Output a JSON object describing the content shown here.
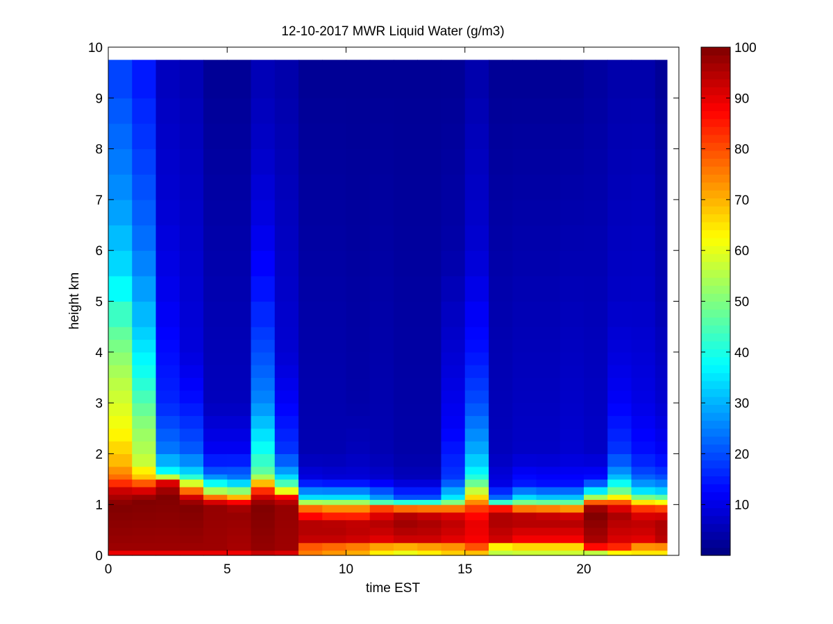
{
  "chart_data": {
    "type": "heatmap",
    "title": "12-10-2017 MWR Liquid Water (g/m3)",
    "xlabel": "time EST",
    "ylabel": "height km",
    "xlim": [
      0,
      24
    ],
    "ylim": [
      0,
      10
    ],
    "xticks": [
      0,
      5,
      10,
      15,
      20
    ],
    "yticks": [
      0,
      1,
      2,
      3,
      4,
      5,
      6,
      7,
      8,
      9,
      10
    ],
    "colormap": "jet",
    "clim": [
      0,
      100
    ],
    "colorbar_ticks": [
      10,
      20,
      30,
      40,
      50,
      60,
      70,
      80,
      90,
      100
    ],
    "time_columns": [
      0,
      1,
      2,
      3,
      4,
      5,
      6,
      7,
      8,
      9,
      10,
      11,
      12,
      13,
      14,
      15,
      16,
      17,
      18,
      19,
      20,
      21,
      22,
      23
    ],
    "height_bins_top_km": [
      0.1,
      0.25,
      0.4,
      0.55,
      0.7,
      0.85,
      1.0,
      1.1,
      1.2,
      1.35,
      1.5,
      1.6,
      1.75,
      2.0,
      2.25,
      2.5,
      2.75,
      3.0,
      3.25,
      3.5,
      3.75,
      4.0,
      4.25,
      4.5,
      5.0,
      5.5,
      6.0,
      6.5,
      7.0,
      7.5,
      8.0,
      8.5,
      9.0,
      9.75
    ],
    "profiles": [
      {
        "time": 0,
        "anchors": [
          [
            0,
            82
          ],
          [
            0.1,
            97
          ],
          [
            1.0,
            100
          ],
          [
            1.3,
            92
          ],
          [
            1.5,
            78
          ],
          [
            1.8,
            70
          ],
          [
            2.5,
            62
          ],
          [
            3.5,
            55
          ],
          [
            4.5,
            46
          ],
          [
            5.5,
            35
          ],
          [
            7,
            27
          ],
          [
            8.5,
            22
          ],
          [
            9.75,
            18
          ]
        ]
      },
      {
        "time": 1,
        "anchors": [
          [
            0,
            82
          ],
          [
            0.1,
            97
          ],
          [
            1.1,
            100
          ],
          [
            1.3,
            90
          ],
          [
            1.55,
            68
          ],
          [
            1.9,
            56
          ],
          [
            2.5,
            52
          ],
          [
            3.5,
            40
          ],
          [
            4.5,
            32
          ],
          [
            6,
            24
          ],
          [
            8,
            18
          ],
          [
            9.75,
            14
          ]
        ]
      },
      {
        "time": 2,
        "anchors": [
          [
            0,
            82
          ],
          [
            0.1,
            97
          ],
          [
            1.2,
            100
          ],
          [
            1.45,
            90
          ],
          [
            1.6,
            40
          ],
          [
            2.0,
            25
          ],
          [
            3,
            16
          ],
          [
            5,
            11
          ],
          [
            7,
            8
          ],
          [
            9.75,
            6
          ]
        ]
      },
      {
        "time": 3,
        "anchors": [
          [
            0,
            82
          ],
          [
            0.1,
            97
          ],
          [
            1.0,
            100
          ],
          [
            1.15,
            92
          ],
          [
            1.4,
            62
          ],
          [
            1.6,
            35
          ],
          [
            2.0,
            22
          ],
          [
            3,
            14
          ],
          [
            4,
            9
          ],
          [
            9.75,
            5
          ]
        ]
      },
      {
        "time": 4,
        "anchors": [
          [
            0,
            82
          ],
          [
            0.1,
            97
          ],
          [
            1.0,
            98
          ],
          [
            1.1,
            85
          ],
          [
            1.3,
            50
          ],
          [
            1.6,
            22
          ],
          [
            2,
            12
          ],
          [
            3,
            6
          ],
          [
            9.75,
            2
          ]
        ]
      },
      {
        "time": 5,
        "anchors": [
          [
            0,
            82
          ],
          [
            0.1,
            96
          ],
          [
            0.9,
            98
          ],
          [
            1.05,
            88
          ],
          [
            1.2,
            60
          ],
          [
            1.5,
            25
          ],
          [
            2,
            12
          ],
          [
            3,
            6
          ],
          [
            9.75,
            2
          ]
        ]
      },
      {
        "time": 6,
        "anchors": [
          [
            0,
            90
          ],
          [
            0.15,
            98
          ],
          [
            1.0,
            100
          ],
          [
            1.2,
            90
          ],
          [
            1.4,
            72
          ],
          [
            1.6,
            48
          ],
          [
            2.0,
            40
          ],
          [
            2.5,
            33
          ],
          [
            3,
            26
          ],
          [
            4,
            20
          ],
          [
            5,
            15
          ],
          [
            6.5,
            10
          ],
          [
            8,
            7
          ],
          [
            9.75,
            5
          ]
        ]
      },
      {
        "time": 7,
        "anchors": [
          [
            0,
            85
          ],
          [
            0.1,
            97
          ],
          [
            1.0,
            98
          ],
          [
            1.15,
            88
          ],
          [
            1.3,
            55
          ],
          [
            1.6,
            30
          ],
          [
            2,
            18
          ],
          [
            3,
            12
          ],
          [
            4,
            8
          ],
          [
            9.75,
            4
          ]
        ]
      },
      {
        "time": 8,
        "anchors": [
          [
            0,
            75
          ],
          [
            0.15,
            76
          ],
          [
            0.3,
            93
          ],
          [
            0.6,
            96
          ],
          [
            0.85,
            84
          ],
          [
            1.0,
            70
          ],
          [
            1.1,
            38
          ],
          [
            1.5,
            10
          ],
          [
            2,
            5
          ],
          [
            9.75,
            2
          ]
        ]
      },
      {
        "time": 9,
        "anchors": [
          [
            0,
            72
          ],
          [
            0.15,
            74
          ],
          [
            0.3,
            93
          ],
          [
            0.6,
            96
          ],
          [
            0.85,
            80
          ],
          [
            1.0,
            68
          ],
          [
            1.1,
            38
          ],
          [
            1.5,
            9
          ],
          [
            2,
            5
          ],
          [
            9.75,
            2
          ]
        ]
      },
      {
        "time": 10,
        "anchors": [
          [
            0,
            70
          ],
          [
            0.15,
            72
          ],
          [
            0.3,
            92
          ],
          [
            0.6,
            95
          ],
          [
            0.85,
            80
          ],
          [
            1.0,
            68
          ],
          [
            1.1,
            38
          ],
          [
            1.5,
            9
          ],
          [
            2,
            6
          ],
          [
            3,
            4
          ],
          [
            9.75,
            2
          ]
        ]
      },
      {
        "time": 11,
        "anchors": [
          [
            0,
            62
          ],
          [
            0.15,
            68
          ],
          [
            0.3,
            90
          ],
          [
            0.6,
            95
          ],
          [
            0.9,
            88
          ],
          [
            1.0,
            60
          ],
          [
            1.1,
            30
          ],
          [
            1.5,
            8
          ],
          [
            2,
            5
          ],
          [
            9.75,
            2
          ]
        ]
      },
      {
        "time": 12,
        "anchors": [
          [
            0,
            58
          ],
          [
            0.15,
            66
          ],
          [
            0.3,
            92
          ],
          [
            0.6,
            97
          ],
          [
            0.85,
            94
          ],
          [
            1.0,
            60
          ],
          [
            1.1,
            22
          ],
          [
            1.5,
            6
          ],
          [
            2,
            4
          ],
          [
            9.75,
            2
          ]
        ]
      },
      {
        "time": 13,
        "anchors": [
          [
            0,
            62
          ],
          [
            0.15,
            68
          ],
          [
            0.3,
            92
          ],
          [
            0.6,
            96
          ],
          [
            0.85,
            92
          ],
          [
            1.0,
            60
          ],
          [
            1.1,
            22
          ],
          [
            1.5,
            6
          ],
          [
            2,
            4
          ],
          [
            9.75,
            2
          ]
        ]
      },
      {
        "time": 14,
        "anchors": [
          [
            0,
            66
          ],
          [
            0.15,
            70
          ],
          [
            0.3,
            90
          ],
          [
            0.6,
            94
          ],
          [
            0.85,
            90
          ],
          [
            1.0,
            62
          ],
          [
            1.1,
            38
          ],
          [
            1.5,
            18
          ],
          [
            2.5,
            12
          ],
          [
            4,
            8
          ],
          [
            6,
            4
          ],
          [
            9.75,
            2
          ]
        ]
      },
      {
        "time": 15,
        "anchors": [
          [
            0,
            64
          ],
          [
            0.15,
            78
          ],
          [
            0.3,
            88
          ],
          [
            0.6,
            90
          ],
          [
            0.85,
            86
          ],
          [
            1.0,
            78
          ],
          [
            1.1,
            70
          ],
          [
            1.3,
            55
          ],
          [
            1.6,
            38
          ],
          [
            2,
            30
          ],
          [
            3,
            20
          ],
          [
            4,
            14
          ],
          [
            6,
            8
          ],
          [
            8,
            6
          ],
          [
            9.75,
            4
          ]
        ]
      },
      {
        "time": 16,
        "anchors": [
          [
            0,
            55
          ],
          [
            0.15,
            58
          ],
          [
            0.3,
            92
          ],
          [
            0.7,
            96
          ],
          [
            0.9,
            94
          ],
          [
            1.0,
            60
          ],
          [
            1.1,
            25
          ],
          [
            1.4,
            10
          ],
          [
            2,
            6
          ],
          [
            9.75,
            2
          ]
        ]
      },
      {
        "time": 17,
        "anchors": [
          [
            0,
            55
          ],
          [
            0.15,
            62
          ],
          [
            0.3,
            88
          ],
          [
            0.7,
            96
          ],
          [
            0.85,
            92
          ],
          [
            1.0,
            60
          ],
          [
            1.1,
            38
          ],
          [
            1.4,
            15
          ],
          [
            2,
            7
          ],
          [
            9.75,
            2
          ]
        ]
      },
      {
        "time": 18,
        "anchors": [
          [
            0,
            55
          ],
          [
            0.15,
            62
          ],
          [
            0.3,
            88
          ],
          [
            0.7,
            96
          ],
          [
            0.85,
            90
          ],
          [
            1.0,
            60
          ],
          [
            1.1,
            35
          ],
          [
            1.4,
            14
          ],
          [
            2,
            7
          ],
          [
            9.75,
            2
          ]
        ]
      },
      {
        "time": 19,
        "anchors": [
          [
            0,
            55
          ],
          [
            0.15,
            62
          ],
          [
            0.3,
            88
          ],
          [
            0.7,
            96
          ],
          [
            0.85,
            88
          ],
          [
            1.0,
            58
          ],
          [
            1.1,
            35
          ],
          [
            1.4,
            14
          ],
          [
            2,
            8
          ],
          [
            9.75,
            2
          ]
        ]
      },
      {
        "time": 20,
        "anchors": [
          [
            0,
            50
          ],
          [
            0.1,
            62
          ],
          [
            0.2,
            95
          ],
          [
            0.8,
            100
          ],
          [
            1.0,
            95
          ],
          [
            1.1,
            62
          ],
          [
            1.25,
            38
          ],
          [
            1.5,
            14
          ],
          [
            2,
            7
          ],
          [
            9.75,
            3
          ]
        ]
      },
      {
        "time": 21,
        "anchors": [
          [
            0,
            60
          ],
          [
            0.1,
            66
          ],
          [
            0.2,
            90
          ],
          [
            0.8,
            96
          ],
          [
            1.0,
            88
          ],
          [
            1.1,
            70
          ],
          [
            1.25,
            50
          ],
          [
            1.4,
            40
          ],
          [
            1.6,
            28
          ],
          [
            2,
            18
          ],
          [
            3,
            12
          ],
          [
            4,
            9
          ],
          [
            5,
            7
          ],
          [
            9.75,
            4
          ]
        ]
      },
      {
        "time": 22,
        "anchors": [
          [
            0,
            62
          ],
          [
            0.15,
            70
          ],
          [
            0.3,
            90
          ],
          [
            0.6,
            94
          ],
          [
            0.85,
            90
          ],
          [
            1.0,
            75
          ],
          [
            1.1,
            55
          ],
          [
            1.3,
            32
          ],
          [
            1.6,
            20
          ],
          [
            2,
            14
          ],
          [
            3,
            10
          ],
          [
            5,
            7
          ],
          [
            7,
            6
          ],
          [
            9.75,
            4
          ]
        ]
      },
      {
        "time": 23,
        "anchors": [
          [
            0,
            62
          ],
          [
            0.15,
            70
          ],
          [
            0.3,
            94
          ],
          [
            0.6,
            96
          ],
          [
            0.85,
            90
          ],
          [
            1.0,
            72
          ],
          [
            1.1,
            52
          ],
          [
            1.3,
            30
          ],
          [
            1.6,
            18
          ],
          [
            2,
            12
          ],
          [
            3,
            8
          ],
          [
            5,
            5
          ],
          [
            7,
            4
          ],
          [
            9.75,
            2
          ]
        ]
      }
    ]
  }
}
